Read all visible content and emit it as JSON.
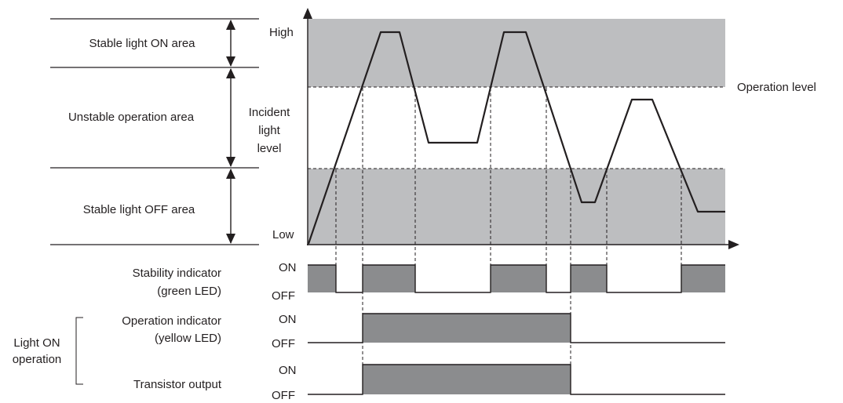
{
  "areas": {
    "stable_on": "Stable light ON area",
    "unstable": "Unstable operation area",
    "stable_off": "Stable light OFF area"
  },
  "axis": {
    "high": "High",
    "low": "Low",
    "ylabel_line1": "Incident",
    "ylabel_line2": "light",
    "ylabel_line3": "level"
  },
  "operation_level_label": "Operation level",
  "stability": {
    "label_line1": "Stability indicator",
    "label_line2": "(green LED)",
    "on": "ON",
    "off": "OFF"
  },
  "operation_indicator": {
    "label_line1": "Operation indicator",
    "label_line2": "(yellow LED)",
    "on": "ON",
    "off": "OFF"
  },
  "transistor": {
    "label": "Transistor output",
    "on": "ON",
    "off": "OFF"
  },
  "group": {
    "line1": "Light ON",
    "line2": "operation"
  },
  "colors": {
    "band_fill": "#bdbec0",
    "pulse_fill": "#8b8c8e",
    "line": "#231f20",
    "background": "#ffffff"
  }
}
